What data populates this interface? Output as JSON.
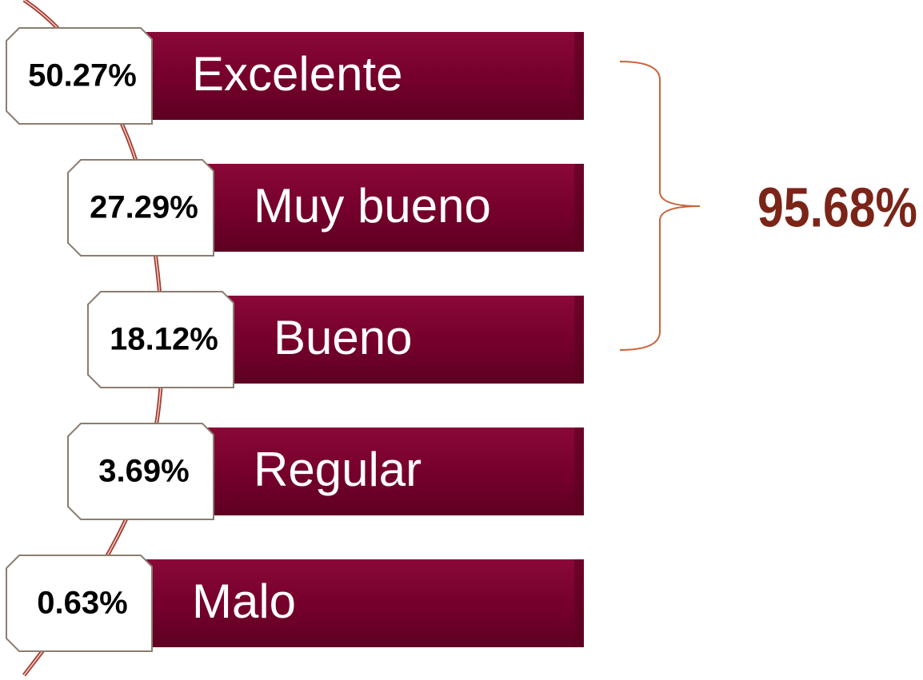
{
  "items": [
    {
      "percent": "50.27%",
      "label": "Excelente"
    },
    {
      "percent": "27.29%",
      "label": "Muy bueno"
    },
    {
      "percent": "18.12%",
      "label": "Bueno"
    },
    {
      "percent": "3.69%",
      "label": "Regular"
    },
    {
      "percent": "0.63%",
      "label": "Malo"
    }
  ],
  "total": "95.68%"
}
